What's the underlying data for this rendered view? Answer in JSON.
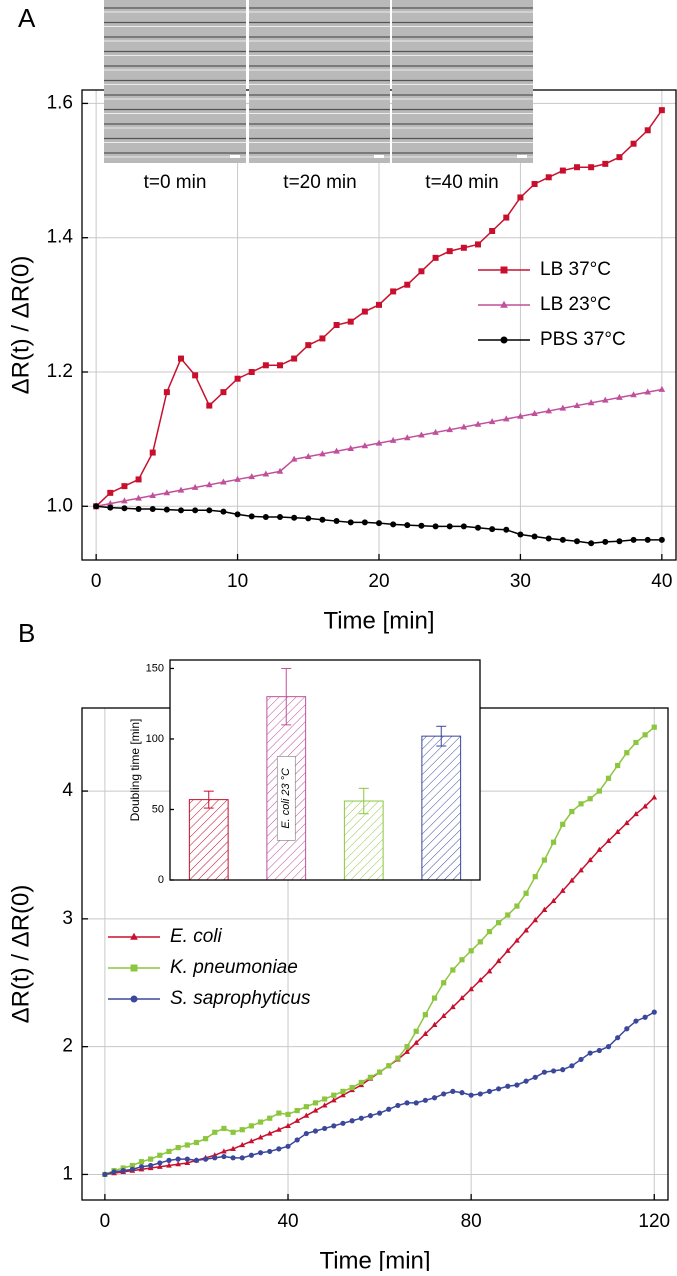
{
  "chart_data": [
    {
      "type": "line",
      "panel_label": "A",
      "xlabel": "Time [min]",
      "ylabel": "ΔR(t) / ΔR(0)",
      "image_labels": [
        "t=0 min",
        "t=20 min",
        "t=40 min"
      ],
      "xlim": [
        -1,
        41
      ],
      "ylim": [
        0.92,
        1.62
      ],
      "xticks": [
        0,
        10,
        20,
        30,
        40
      ],
      "yticks": [
        {
          "value": 1,
          "label": "1.0"
        },
        {
          "value": 1.2,
          "label": "1.2"
        },
        {
          "value": 1.4,
          "label": "1.4"
        },
        {
          "value": 1.6,
          "label": "1.6"
        }
      ],
      "grid": true,
      "legend": "center right",
      "x": [
        0,
        1,
        2,
        3,
        4,
        5,
        6,
        7,
        8,
        9,
        10,
        11,
        12,
        13,
        14,
        15,
        16,
        17,
        18,
        19,
        20,
        21,
        22,
        23,
        24,
        25,
        26,
        27,
        28,
        29,
        30,
        31,
        32,
        33,
        34,
        35,
        36,
        37,
        38,
        39,
        40
      ],
      "series": [
        {
          "name": "LB  37°C",
          "color": "#c8102e",
          "marker": "square",
          "values": [
            1.0,
            1.02,
            1.03,
            1.04,
            1.08,
            1.17,
            1.22,
            1.195,
            1.15,
            1.17,
            1.19,
            1.2,
            1.21,
            1.21,
            1.22,
            1.24,
            1.25,
            1.27,
            1.275,
            1.29,
            1.3,
            1.32,
            1.33,
            1.35,
            1.37,
            1.38,
            1.385,
            1.39,
            1.41,
            1.43,
            1.46,
            1.48,
            1.49,
            1.5,
            1.505,
            1.505,
            1.51,
            1.52,
            1.54,
            1.56,
            1.59
          ]
        },
        {
          "name": "LB  23°C",
          "color": "#c0509c",
          "marker": "triangle",
          "values": [
            1.0,
            1.004,
            1.008,
            1.012,
            1.016,
            1.02,
            1.024,
            1.028,
            1.032,
            1.036,
            1.04,
            1.044,
            1.048,
            1.052,
            1.07,
            1.074,
            1.078,
            1.082,
            1.086,
            1.09,
            1.094,
            1.098,
            1.102,
            1.106,
            1.11,
            1.114,
            1.118,
            1.122,
            1.126,
            1.13,
            1.134,
            1.138,
            1.142,
            1.146,
            1.15,
            1.154,
            1.158,
            1.162,
            1.166,
            1.17,
            1.174
          ]
        },
        {
          "name": "PBS 37°C",
          "color": "#000000",
          "marker": "circle",
          "values": [
            1.0,
            0.998,
            0.997,
            0.996,
            0.996,
            0.995,
            0.994,
            0.994,
            0.994,
            0.992,
            0.988,
            0.985,
            0.984,
            0.984,
            0.983,
            0.982,
            0.98,
            0.978,
            0.976,
            0.976,
            0.975,
            0.973,
            0.972,
            0.971,
            0.97,
            0.97,
            0.97,
            0.968,
            0.966,
            0.965,
            0.958,
            0.955,
            0.952,
            0.95,
            0.948,
            0.945,
            0.947,
            0.948,
            0.95,
            0.95,
            0.95
          ]
        }
      ]
    },
    {
      "type": "line",
      "panel_label": "B",
      "xlabel": "Time [min]",
      "ylabel": "ΔR(t) / ΔR(0)",
      "xlim": [
        -5,
        123
      ],
      "ylim": [
        0.8,
        4.65
      ],
      "xticks": [
        0,
        40,
        80,
        120
      ],
      "yticks": [
        1,
        2,
        3,
        4
      ],
      "grid": true,
      "legend": "center left",
      "x": [
        0,
        2,
        4,
        6,
        8,
        10,
        12,
        14,
        16,
        18,
        20,
        22,
        24,
        26,
        28,
        30,
        32,
        34,
        36,
        38,
        40,
        42,
        44,
        46,
        48,
        50,
        52,
        54,
        56,
        58,
        60,
        62,
        64,
        66,
        68,
        70,
        72,
        74,
        76,
        78,
        80,
        82,
        84,
        86,
        88,
        90,
        92,
        94,
        96,
        98,
        100,
        102,
        104,
        106,
        108,
        110,
        112,
        114,
        116,
        118,
        120
      ],
      "series": [
        {
          "name": "E. coli",
          "color": "#c8102e",
          "marker": "triangle",
          "values": [
            1.0,
            1.01,
            1.02,
            1.03,
            1.04,
            1.05,
            1.06,
            1.07,
            1.08,
            1.09,
            1.11,
            1.13,
            1.15,
            1.18,
            1.2,
            1.23,
            1.26,
            1.29,
            1.32,
            1.35,
            1.38,
            1.42,
            1.46,
            1.5,
            1.54,
            1.58,
            1.62,
            1.66,
            1.7,
            1.75,
            1.8,
            1.85,
            1.9,
            1.96,
            2.03,
            2.1,
            2.17,
            2.24,
            2.31,
            2.38,
            2.45,
            2.52,
            2.59,
            2.67,
            2.75,
            2.83,
            2.91,
            2.99,
            3.07,
            3.14,
            3.22,
            3.3,
            3.38,
            3.46,
            3.54,
            3.61,
            3.68,
            3.75,
            3.82,
            3.88,
            3.95
          ]
        },
        {
          "name": "K. pneumoniae",
          "color": "#8cc63e",
          "marker": "square",
          "values": [
            1.0,
            1.03,
            1.05,
            1.07,
            1.1,
            1.12,
            1.15,
            1.18,
            1.21,
            1.23,
            1.25,
            1.28,
            1.33,
            1.36,
            1.33,
            1.35,
            1.38,
            1.41,
            1.44,
            1.48,
            1.47,
            1.5,
            1.53,
            1.56,
            1.59,
            1.62,
            1.65,
            1.68,
            1.72,
            1.76,
            1.8,
            1.85,
            1.91,
            2.0,
            2.12,
            2.25,
            2.38,
            2.5,
            2.6,
            2.68,
            2.75,
            2.82,
            2.9,
            2.97,
            3.03,
            3.1,
            3.2,
            3.33,
            3.46,
            3.6,
            3.74,
            3.84,
            3.9,
            3.94,
            4.0,
            4.1,
            4.2,
            4.3,
            4.38,
            4.44,
            4.5
          ]
        },
        {
          "name": "S. saprophyticus",
          "color": "#3a479b",
          "marker": "circle",
          "values": [
            1.0,
            1.02,
            1.03,
            1.04,
            1.06,
            1.07,
            1.09,
            1.11,
            1.12,
            1.12,
            1.11,
            1.12,
            1.13,
            1.14,
            1.13,
            1.13,
            1.15,
            1.17,
            1.18,
            1.2,
            1.22,
            1.27,
            1.32,
            1.34,
            1.36,
            1.38,
            1.4,
            1.42,
            1.44,
            1.46,
            1.48,
            1.51,
            1.54,
            1.56,
            1.56,
            1.58,
            1.6,
            1.63,
            1.65,
            1.64,
            1.62,
            1.63,
            1.65,
            1.67,
            1.69,
            1.7,
            1.73,
            1.76,
            1.8,
            1.81,
            1.82,
            1.85,
            1.9,
            1.95,
            1.97,
            2.0,
            2.07,
            2.14,
            2.2,
            2.23,
            2.27
          ]
        }
      ]
    },
    {
      "type": "bar",
      "ylabel": "Doubling time [min]",
      "annotation": "E. coli 23 °C",
      "categories": [
        null,
        null,
        null,
        null
      ],
      "values": [
        57,
        130,
        56,
        102
      ],
      "errors": [
        6,
        20,
        9,
        7
      ],
      "colors": [
        "#c8102e",
        "#c0509c",
        "#8cc63e",
        "#3a479b"
      ],
      "ylim": [
        0,
        156
      ],
      "yticks": [
        0,
        50,
        100,
        150
      ]
    }
  ]
}
